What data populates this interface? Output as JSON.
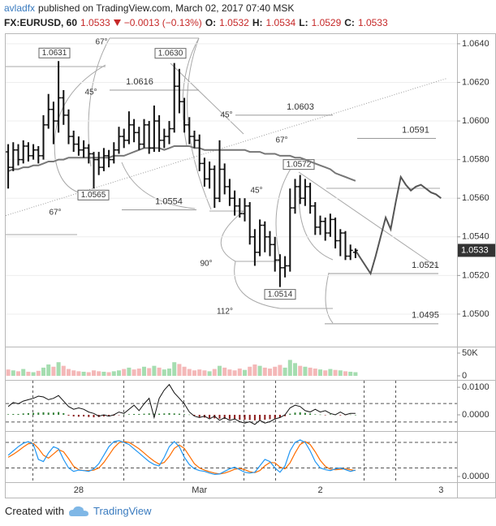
{
  "header": {
    "author": "avladfx",
    "published": "published on TradingView.com, March 02, 2017 07:40 MSK",
    "symbol": "FX:EURUSD, 60",
    "last": "1.0533",
    "change": "−0.0013 (−0.13%)",
    "open_label": "O:",
    "open": "1.0532",
    "high_label": "H:",
    "high": "1.0534",
    "low_label": "L:",
    "low": "1.0529",
    "close_label": "C:",
    "close": "1.0533"
  },
  "chart_data": {
    "type": "ohlc",
    "categories": [
      null,
      null,
      null,
      null,
      null,
      null,
      null,
      null,
      null,
      null,
      null,
      null,
      null,
      null,
      "28",
      null,
      null,
      null,
      null,
      null,
      null,
      null,
      null,
      null,
      null,
      null,
      null,
      null,
      null,
      null,
      null,
      null,
      null,
      null,
      null,
      null,
      null,
      null,
      "Mar",
      null,
      null,
      null,
      null,
      null,
      null,
      null,
      null,
      null,
      null,
      null,
      null,
      null,
      null,
      null,
      null,
      null,
      null,
      null,
      null,
      null,
      null,
      null,
      "2",
      null,
      null,
      null,
      null,
      null,
      null,
      null,
      null,
      null,
      null,
      null,
      null,
      null,
      null,
      null,
      null,
      null,
      null,
      null,
      null,
      null,
      null,
      null,
      "3",
      null,
      null,
      null
    ],
    "open": [
      1.0584,
      1.0576,
      1.0585,
      1.058,
      1.0587,
      1.0582,
      1.0585,
      1.0582,
      1.0598,
      1.0606,
      1.06,
      1.0612,
      1.0603,
      1.0592,
      1.0588,
      1.0585,
      1.0586,
      1.0583,
      1.058,
      1.0576,
      1.0582,
      1.058,
      1.0585,
      1.0592,
      1.059,
      1.0598,
      1.0594,
      1.0588,
      1.0598,
      1.0586,
      1.06,
      1.059,
      1.0592,
      1.0596,
      1.0618,
      1.061,
      1.0598,
      1.0592,
      1.059,
      1.0578,
      1.057,
      1.0575,
      1.056,
      1.0575,
      1.0566,
      1.056,
      1.0556,
      1.0552,
      1.0556,
      1.054,
      1.0532,
      1.0546,
      1.054,
      1.0536,
      1.0528,
      1.0524,
      1.0525,
      1.0555,
      1.0566,
      1.056,
      1.0566,
      1.0556,
      1.0545,
      1.0548,
      1.0542,
      1.0549,
      1.0538,
      1.0542,
      1.053,
      1.0532,
      null,
      null,
      null,
      null,
      null,
      null,
      null,
      null,
      null,
      null,
      null,
      null,
      null,
      null,
      null,
      null,
      null,
      null,
      null,
      null
    ],
    "high": [
      1.0588,
      1.0589,
      1.0588,
      1.059,
      1.0589,
      1.0588,
      1.0587,
      1.0603,
      1.0614,
      1.061,
      1.0631,
      1.0616,
      1.0606,
      1.0595,
      1.0592,
      1.059,
      1.0588,
      1.0584,
      1.0584,
      1.0586,
      1.0585,
      1.0589,
      1.0597,
      1.0596,
      1.0605,
      1.0601,
      1.0597,
      1.0601,
      1.06,
      1.0608,
      1.0603,
      1.0596,
      1.06,
      1.063,
      1.0627,
      1.0612,
      1.0602,
      1.0595,
      1.0593,
      1.0581,
      1.0579,
      1.0577,
      1.059,
      1.0578,
      1.057,
      1.0564,
      1.056,
      1.056,
      1.0558,
      1.0544,
      1.0549,
      1.0548,
      1.0543,
      1.054,
      1.0531,
      1.053,
      1.0565,
      1.057,
      1.0572,
      1.057,
      1.0568,
      1.0558,
      1.0551,
      1.055,
      1.0552,
      1.055,
      1.0544,
      1.0543,
      1.0536,
      1.0534,
      null,
      null,
      null,
      null,
      null,
      null,
      null,
      null,
      null,
      null,
      null,
      null,
      null,
      null,
      null,
      null,
      null,
      null,
      null,
      null
    ],
    "low": [
      1.0565,
      1.0574,
      1.0577,
      1.0578,
      1.0579,
      1.058,
      1.0578,
      1.058,
      1.0596,
      1.0588,
      1.0594,
      1.0598,
      1.0588,
      1.0584,
      1.0582,
      1.0581,
      1.0578,
      1.0565,
      1.0572,
      1.0574,
      1.0576,
      1.0578,
      1.0583,
      1.0586,
      1.0588,
      1.0589,
      1.0585,
      1.0586,
      1.0583,
      1.0584,
      1.0584,
      1.0586,
      1.0588,
      1.0594,
      1.0604,
      1.0594,
      1.0588,
      1.0586,
      1.0574,
      1.0566,
      1.0565,
      1.0555,
      1.0558,
      1.0562,
      1.0556,
      1.0551,
      1.055,
      1.0548,
      1.0536,
      1.0525,
      1.053,
      1.0532,
      1.053,
      1.0522,
      1.0514,
      1.0519,
      1.0522,
      1.0552,
      1.0557,
      1.0556,
      1.0552,
      1.0541,
      1.0541,
      1.0538,
      1.054,
      1.0534,
      1.053,
      1.0528,
      1.0528,
      1.0529,
      null,
      null,
      null,
      null,
      null,
      null,
      null,
      null,
      null,
      null,
      null,
      null,
      null,
      null,
      null,
      null,
      null,
      null,
      null,
      null
    ],
    "close": [
      1.0576,
      1.0585,
      1.058,
      1.0587,
      1.0582,
      1.0585,
      1.0582,
      1.0598,
      1.0606,
      1.06,
      1.0612,
      1.0603,
      1.0592,
      1.0588,
      1.0585,
      1.0586,
      1.0583,
      1.058,
      1.0576,
      1.0582,
      1.058,
      1.0585,
      1.0592,
      1.059,
      1.0598,
      1.0594,
      1.0588,
      1.0598,
      1.0586,
      1.06,
      1.059,
      1.0592,
      1.0596,
      1.0618,
      1.061,
      1.0598,
      1.0592,
      1.059,
      1.0578,
      1.057,
      1.0575,
      1.056,
      1.0575,
      1.0566,
      1.056,
      1.0556,
      1.0552,
      1.0556,
      1.054,
      1.0532,
      1.0546,
      1.054,
      1.0536,
      1.0528,
      1.0524,
      1.0525,
      1.0555,
      1.0566,
      1.056,
      1.0566,
      1.0556,
      1.0545,
      1.0548,
      1.0542,
      1.0549,
      1.0538,
      1.0542,
      1.053,
      1.0533,
      1.0533,
      null,
      null,
      null,
      null,
      null,
      null,
      null,
      null,
      null,
      null,
      null,
      null,
      null,
      null,
      null,
      null,
      null,
      null,
      null,
      null
    ],
    "bar_color": "#111111",
    "ylim": [
      1.0484,
      1.0645
    ],
    "yticks": [
      {
        "value": 1.064,
        "label": "1.0640"
      },
      {
        "value": 1.062,
        "label": "1.0620"
      },
      {
        "value": 1.06,
        "label": "1.0600"
      },
      {
        "value": 1.058,
        "label": "1.0580"
      },
      {
        "value": 1.056,
        "label": "1.0560"
      },
      {
        "value": 1.054,
        "label": "1.0540"
      },
      {
        "value": 1.052,
        "label": "1.0520"
      },
      {
        "value": 1.05,
        "label": "1.0500"
      }
    ],
    "grid": true,
    "moving_average": {
      "color": "#777777",
      "values": [
        1.0574,
        1.0575,
        1.0575,
        1.0576,
        1.0576,
        1.0577,
        1.0577,
        1.0578,
        1.0579,
        1.0579,
        1.058,
        1.058,
        1.0581,
        1.0581,
        1.0581,
        1.0581,
        1.0581,
        1.0581,
        1.0581,
        1.0581,
        1.0581,
        1.0582,
        1.0582,
        1.0582,
        1.0583,
        1.0584,
        1.0585,
        1.0586,
        1.0586,
        1.0586,
        1.0586,
        1.0585,
        1.0586,
        1.0587,
        1.0587,
        1.0587,
        1.0587,
        1.0586,
        1.0586,
        1.0585,
        1.0585,
        1.0585,
        1.0585,
        1.0585,
        1.0585,
        1.0585,
        1.0585,
        1.0585,
        1.0584,
        1.0584,
        1.0584,
        1.0583,
        1.0583,
        1.0583,
        1.0582,
        1.0582,
        1.0582,
        1.0581,
        1.0581,
        1.058,
        1.0579,
        1.0578,
        1.0577,
        1.0576,
        1.0575,
        1.0573,
        1.0572,
        1.0571,
        1.057,
        1.0569,
        null,
        null,
        null,
        null,
        null,
        null,
        null,
        null,
        null,
        null,
        null,
        null,
        null,
        null,
        null,
        null,
        null,
        null,
        null,
        null
      ]
    },
    "projection": {
      "color": "#555555",
      "values": [
        null,
        null,
        null,
        null,
        null,
        null,
        null,
        null,
        null,
        null,
        null,
        null,
        null,
        null,
        null,
        null,
        null,
        null,
        null,
        null,
        null,
        null,
        null,
        null,
        null,
        null,
        null,
        null,
        null,
        null,
        null,
        null,
        null,
        null,
        null,
        null,
        null,
        null,
        null,
        null,
        null,
        null,
        null,
        null,
        null,
        null,
        null,
        null,
        null,
        null,
        null,
        null,
        null,
        null,
        null,
        null,
        null,
        null,
        null,
        null,
        null,
        null,
        null,
        null,
        null,
        null,
        null,
        null,
        null,
        1.0533,
        1.0529,
        1.0525,
        1.0521,
        1.053,
        1.054,
        1.055,
        1.0544,
        1.0558,
        1.0571,
        1.0567,
        1.0564,
        1.0566,
        1.0567,
        1.0565,
        1.0563,
        1.0562,
        1.056,
        null,
        null,
        null
      ]
    },
    "trend_line": {
      "color": "#9a9a9a",
      "values": [
        1.0551,
        1.0622
      ]
    },
    "levels": [
      {
        "value": 1.0631,
        "label": "1.0631"
      },
      {
        "value": 1.0616,
        "label": "1.0616"
      },
      {
        "value": 1.063,
        "label": "1.0630"
      },
      {
        "value": 1.0603,
        "label": "1.0603"
      },
      {
        "value": 1.0591,
        "label": "1.0591"
      },
      {
        "value": 1.0565,
        "label": "1.0565"
      },
      {
        "value": 1.0554,
        "label": "1.0554"
      },
      {
        "value": 1.0572,
        "label": "1.0572"
      },
      {
        "value": 1.0521,
        "label": "1.0521"
      },
      {
        "value": 1.0514,
        "label": "1.0514"
      },
      {
        "value": 1.0495,
        "label": "1.0495"
      }
    ],
    "angle_labels": [
      "67°",
      "45°",
      "45°",
      "67°",
      "45°",
      "67°",
      "90°",
      "112°"
    ],
    "volume": {
      "up_color": "#7fcf8e",
      "down_color": "#ef9a9a",
      "ylim": [
        0,
        62500
      ],
      "yticks": [
        {
          "value": 50000,
          "label": "50K"
        },
        0
      ],
      "values": [
        14000,
        12000,
        10000,
        15000,
        9000,
        8000,
        11000,
        18000,
        25000,
        20000,
        30000,
        22000,
        15000,
        12000,
        10000,
        9000,
        8000,
        12000,
        10000,
        9000,
        8000,
        10000,
        12000,
        15000,
        18000,
        14000,
        16000,
        20000,
        17000,
        22000,
        18000,
        14000,
        16000,
        30000,
        26000,
        20000,
        15000,
        12000,
        14000,
        12000,
        10000,
        15000,
        22000,
        18000,
        14000,
        12000,
        16000,
        13000,
        20000,
        25000,
        22000,
        18000,
        16000,
        20000,
        24000,
        18000,
        35000,
        28000,
        22000,
        20000,
        18000,
        16000,
        14000,
        12000,
        15000,
        13000,
        12000,
        10000,
        9000,
        8000,
        null,
        null,
        null,
        null,
        null,
        null,
        null,
        null,
        null,
        null,
        null,
        null,
        null,
        null,
        null,
        null,
        null,
        null,
        null,
        null
      ]
    },
    "macd": {
      "color": "#111111",
      "up_color": "#2e7d32",
      "down_color": "#8b1a1a",
      "ylim": [
        -0.0056,
        0.0121
      ],
      "yticks": [
        {
          "value": 0.01,
          "label": "0.0100"
        },
        {
          "value": 0,
          "label": "0.0000"
        }
      ],
      "levels": [
        0.0041,
        -0.0026
      ],
      "values": [
        0.003,
        0.0045,
        0.004,
        0.005,
        0.0055,
        0.006,
        0.0068,
        0.0065,
        0.0055,
        0.006,
        0.007,
        0.005,
        0.003,
        0.002,
        0.0025,
        0.002,
        0.001,
        0.0005,
        -0.0005,
        0.0,
        -0.0005,
        0.0,
        0.001,
        0.0005,
        0.002,
        0.0035,
        0.0015,
        0.004,
        0.006,
        -0.001,
        0.006,
        0.009,
        0.011,
        0.008,
        0.006,
        0.004,
        0.001,
        -0.0005,
        -0.001,
        -0.0005,
        -0.0015,
        -0.0005,
        -0.002,
        -0.001,
        -0.002,
        -0.0015,
        -0.0025,
        -0.003,
        -0.0025,
        -0.0035,
        -0.002,
        -0.003,
        -0.0025,
        -0.0015,
        -0.001,
        0.0,
        0.0025,
        0.0035,
        0.003,
        0.0015,
        0.001,
        0.002,
        0.001,
        0.0015,
        0.0005,
        0.0,
        0.001,
        0.0,
        0.0005,
        0.0005,
        null,
        null,
        null,
        null,
        null,
        null,
        null,
        null,
        null,
        null,
        null,
        null,
        null,
        null,
        null,
        null,
        null,
        null,
        null,
        null
      ],
      "histogram": [
        0.0002,
        0.0003,
        0.0003,
        0.0005,
        0.0006,
        0.0007,
        0.0008,
        0.0009,
        0.0008,
        0.0008,
        0.001,
        0.0006,
        -0.0003,
        -0.0006,
        -0.0007,
        -0.0006,
        -0.0008,
        -0.0009,
        -0.0008,
        -0.0006,
        -0.0004,
        -0.0003,
        -0.0001,
        0.0001,
        0.0002,
        0.0003,
        0.0003,
        0.0004,
        0.0005,
        0.0004,
        0.0004,
        0.0005,
        0.0006,
        0.0005,
        0.0004,
        0.0002,
        0.0001,
        -0.0003,
        -0.0008,
        -0.001,
        -0.0012,
        -0.0013,
        -0.0014,
        -0.0015,
        -0.0016,
        -0.0017,
        -0.0018,
        -0.0018,
        -0.0019,
        -0.002,
        -0.0019,
        -0.0018,
        -0.0016,
        -0.0014,
        -0.001,
        -0.0005,
        0.0004,
        0.0008,
        0.0009,
        0.0007,
        0.0005,
        0.0002,
        0.0001,
        -0.0001,
        0.0002,
        0.0001,
        -0.0002,
        -0.0001,
        0.0001,
        0.0,
        null,
        null,
        null,
        null,
        null,
        null,
        null,
        null,
        null,
        null,
        null,
        null,
        null,
        null,
        null,
        null,
        null,
        null,
        null,
        null
      ]
    },
    "stochastic": {
      "ylim": [
        -11.4,
        102.9
      ],
      "yticks": [
        {
          "value": 0,
          "label": "0.0000"
        }
      ],
      "levels": [
        80,
        20
      ],
      "k": {
        "color": "#2196f3",
        "values": [
          50,
          60,
          70,
          78,
          82,
          75,
          40,
          35,
          55,
          70,
          65,
          40,
          20,
          12,
          15,
          14,
          12,
          18,
          30,
          50,
          70,
          82,
          84,
          80,
          75,
          65,
          55,
          45,
          35,
          28,
          25,
          45,
          70,
          82,
          70,
          45,
          28,
          18,
          14,
          12,
          8,
          5,
          6,
          12,
          18,
          22,
          16,
          10,
          8,
          10,
          25,
          40,
          35,
          20,
          10,
          25,
          60,
          80,
          86,
          80,
          60,
          35,
          20,
          16,
          14,
          18,
          20,
          16,
          12,
          15,
          null,
          null,
          null,
          null,
          null,
          null,
          null,
          null,
          null,
          null,
          null,
          null,
          null,
          null,
          null,
          null,
          null,
          null,
          null,
          null
        ]
      },
      "d": {
        "color": "#ff6d00",
        "values": [
          45,
          52,
          60,
          69,
          77,
          78,
          66,
          50,
          43,
          53,
          63,
          58,
          42,
          24,
          16,
          14,
          14,
          15,
          20,
          33,
          50,
          67,
          79,
          82,
          80,
          73,
          65,
          55,
          45,
          36,
          29,
          33,
          47,
          66,
          74,
          66,
          48,
          30,
          20,
          15,
          11,
          8,
          6,
          8,
          12,
          17,
          19,
          16,
          11,
          9,
          14,
          25,
          33,
          32,
          22,
          18,
          32,
          55,
          75,
          82,
          75,
          58,
          38,
          24,
          17,
          16,
          17,
          18,
          16,
          14,
          null,
          null,
          null,
          null,
          null,
          null,
          null,
          null,
          null,
          null,
          null,
          null,
          null,
          null,
          null,
          null,
          null,
          null,
          null,
          null
        ]
      }
    }
  },
  "footer": {
    "created": "Created with",
    "brand": "TradingView"
  }
}
